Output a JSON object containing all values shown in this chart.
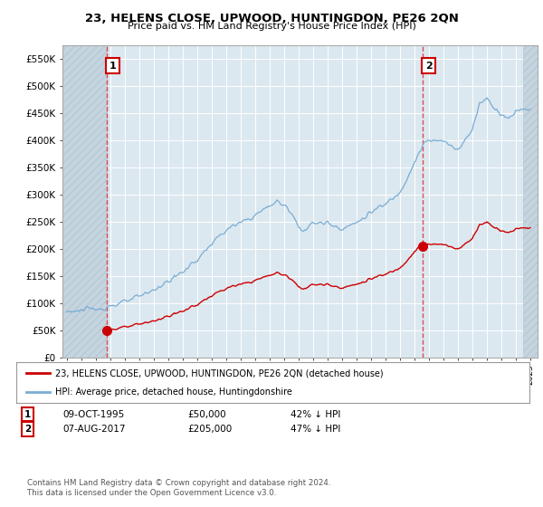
{
  "title": "23, HELENS CLOSE, UPWOOD, HUNTINGDON, PE26 2QN",
  "subtitle": "Price paid vs. HM Land Registry's House Price Index (HPI)",
  "ylim": [
    0,
    575000
  ],
  "yticks": [
    0,
    50000,
    100000,
    150000,
    200000,
    250000,
    300000,
    350000,
    400000,
    450000,
    500000,
    550000
  ],
  "ytick_labels": [
    "£0",
    "£50K",
    "£100K",
    "£150K",
    "£200K",
    "£250K",
    "£300K",
    "£350K",
    "£400K",
    "£450K",
    "£500K",
    "£550K"
  ],
  "xlim_start": 1992.7,
  "xlim_end": 2025.5,
  "sale1_year": 1995.77,
  "sale1_price": 50000,
  "sale2_year": 2017.59,
  "sale2_price": 205000,
  "sale_color": "#cc0000",
  "hpi_color": "#7aadd4",
  "legend_sale_label": "23, HELENS CLOSE, UPWOOD, HUNTINGDON, PE26 2QN (detached house)",
  "legend_hpi_label": "HPI: Average price, detached house, Huntingdonshire",
  "footer": "Contains HM Land Registry data © Crown copyright and database right 2024.\nThis data is licensed under the Open Government Licence v3.0.",
  "plot_bg_color": "#dce8f0",
  "hatch_bg_color": "#c5d5e0"
}
